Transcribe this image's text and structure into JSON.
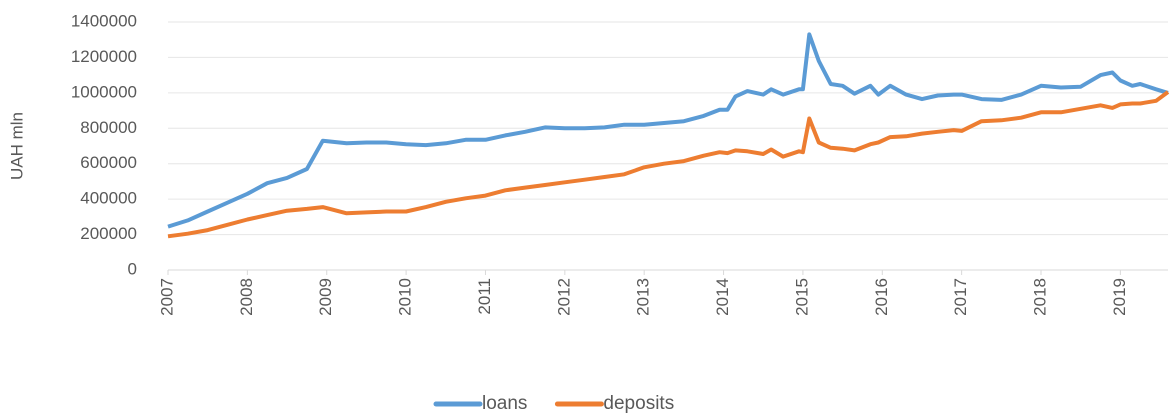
{
  "chart_data": {
    "type": "line",
    "y_label": "UAH mln",
    "x": [
      2007.0,
      2007.25,
      2007.5,
      2007.75,
      2008.0,
      2008.25,
      2008.5,
      2008.75,
      2008.95,
      2009.25,
      2009.5,
      2009.75,
      2010.0,
      2010.25,
      2010.5,
      2010.75,
      2011.0,
      2011.25,
      2011.5,
      2011.75,
      2012.0,
      2012.25,
      2012.5,
      2012.75,
      2013.0,
      2013.25,
      2013.5,
      2013.75,
      2013.95,
      2014.05,
      2014.15,
      2014.3,
      2014.5,
      2014.6,
      2014.75,
      2014.95,
      2015.0,
      2015.08,
      2015.2,
      2015.35,
      2015.5,
      2015.65,
      2015.85,
      2015.95,
      2016.1,
      2016.3,
      2016.5,
      2016.7,
      2016.9,
      2017.0,
      2017.25,
      2017.5,
      2017.75,
      2018.0,
      2018.25,
      2018.5,
      2018.75,
      2018.9,
      2019.0,
      2019.15,
      2019.25,
      2019.45,
      2019.6
    ],
    "series": [
      {
        "name": "loans",
        "color": "#5b9bd5",
        "values": [
          245000,
          280000,
          330000,
          380000,
          430000,
          490000,
          520000,
          570000,
          730000,
          715000,
          720000,
          720000,
          710000,
          705000,
          715000,
          735000,
          735000,
          760000,
          780000,
          805000,
          800000,
          800000,
          805000,
          820000,
          820000,
          830000,
          840000,
          870000,
          905000,
          905000,
          980000,
          1010000,
          990000,
          1020000,
          990000,
          1020000,
          1020000,
          1330000,
          1180000,
          1050000,
          1040000,
          995000,
          1040000,
          990000,
          1040000,
          990000,
          965000,
          985000,
          990000,
          990000,
          965000,
          960000,
          990000,
          1040000,
          1030000,
          1035000,
          1100000,
          1115000,
          1070000,
          1040000,
          1050000,
          1020000,
          1000000
        ]
      },
      {
        "name": "deposits",
        "color": "#ed7d31",
        "values": [
          190000,
          205000,
          225000,
          255000,
          285000,
          310000,
          335000,
          345000,
          355000,
          320000,
          325000,
          330000,
          330000,
          355000,
          385000,
          405000,
          420000,
          450000,
          465000,
          480000,
          495000,
          510000,
          525000,
          540000,
          580000,
          600000,
          615000,
          645000,
          665000,
          660000,
          675000,
          670000,
          655000,
          680000,
          640000,
          670000,
          665000,
          855000,
          720000,
          690000,
          685000,
          675000,
          710000,
          720000,
          750000,
          755000,
          770000,
          780000,
          790000,
          785000,
          840000,
          845000,
          860000,
          890000,
          890000,
          910000,
          930000,
          915000,
          935000,
          940000,
          940000,
          955000,
          1005000
        ]
      }
    ],
    "xlim": [
      2007,
      2019.6
    ],
    "xticks": [
      2007,
      2008,
      2009,
      2010,
      2011,
      2012,
      2013,
      2014,
      2015,
      2016,
      2017,
      2018,
      2019
    ],
    "ylim": [
      0,
      1400000
    ],
    "yticks": [
      0,
      200000,
      400000,
      600000,
      800000,
      1000000,
      1200000,
      1400000
    ],
    "grid": true,
    "legend": "bottom"
  }
}
